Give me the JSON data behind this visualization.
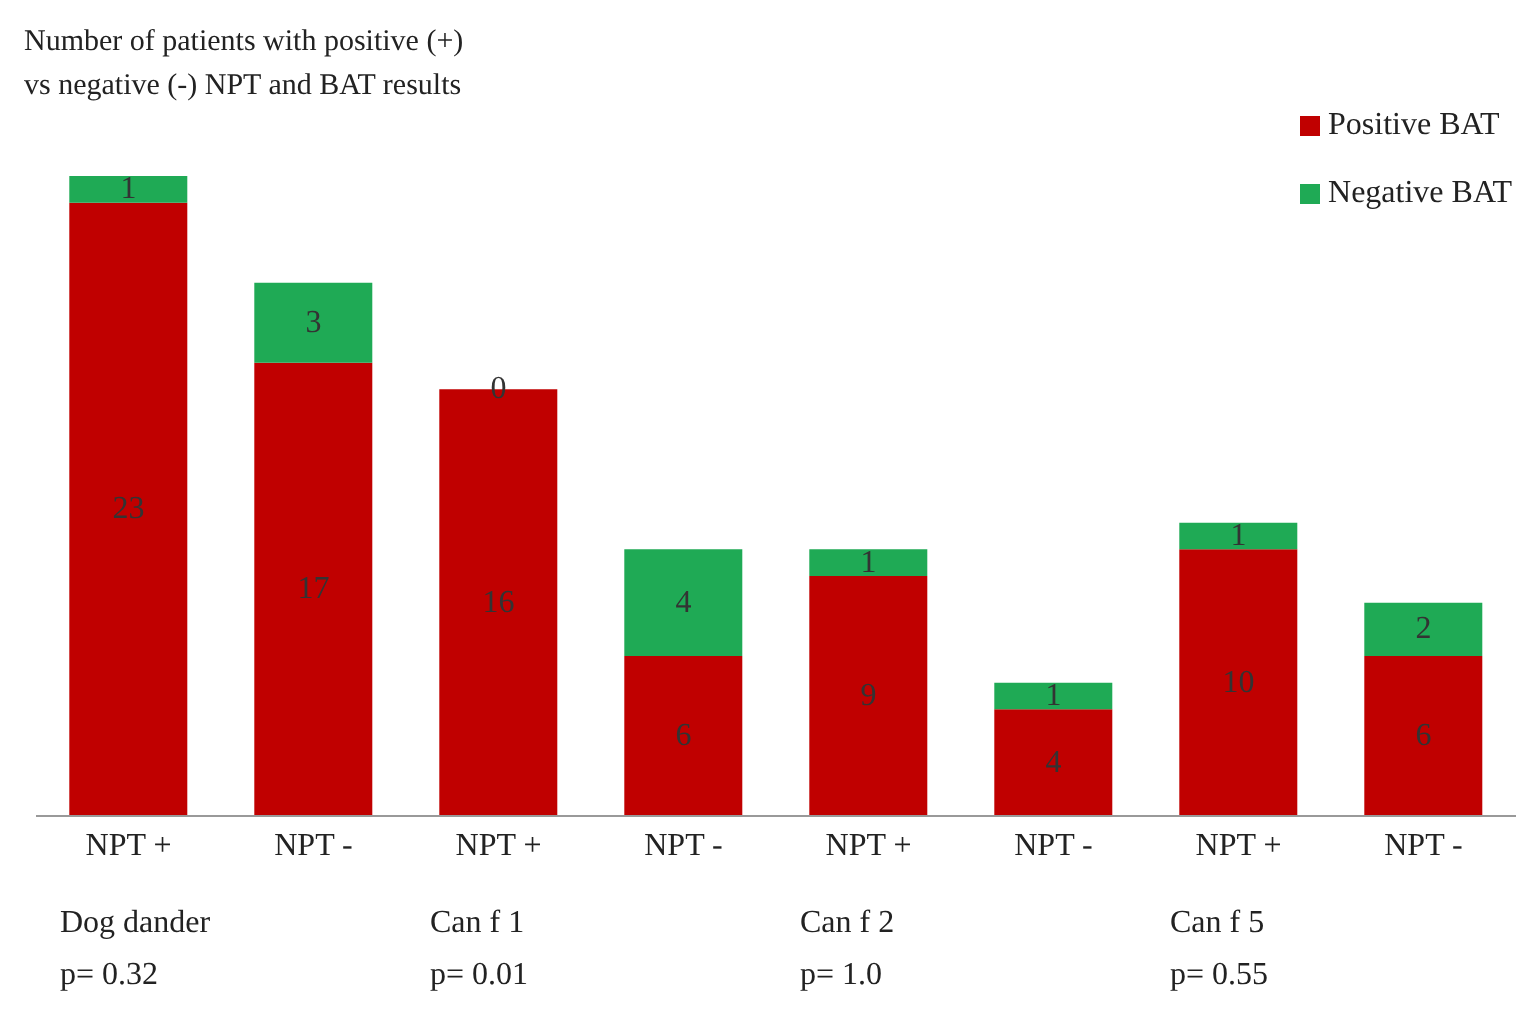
{
  "chart_data": {
    "type": "bar",
    "title": "Number of patients with positive (+)\nvs negative (-) NPT and BAT results",
    "categories": [
      "NPT +",
      "NPT -",
      "NPT +",
      "NPT -",
      "NPT +",
      "NPT -",
      "NPT +",
      "NPT -"
    ],
    "series": [
      {
        "name": "Positive BAT",
        "color": "#c00000",
        "values": [
          23,
          17,
          16,
          6,
          9,
          4,
          10,
          6
        ]
      },
      {
        "name": "Negative BAT",
        "color": "#1faa55",
        "values": [
          1,
          3,
          0,
          4,
          1,
          1,
          1,
          2
        ]
      }
    ],
    "stacked": true,
    "data_labels": true,
    "legend": "top right",
    "grid": false,
    "annotations": [
      "Dog dander",
      "p= 0.32",
      "Can f 1",
      "p= 0.01",
      "Can f 2",
      "p= 1.0",
      "Can f 5",
      "p= 0.55"
    ]
  }
}
